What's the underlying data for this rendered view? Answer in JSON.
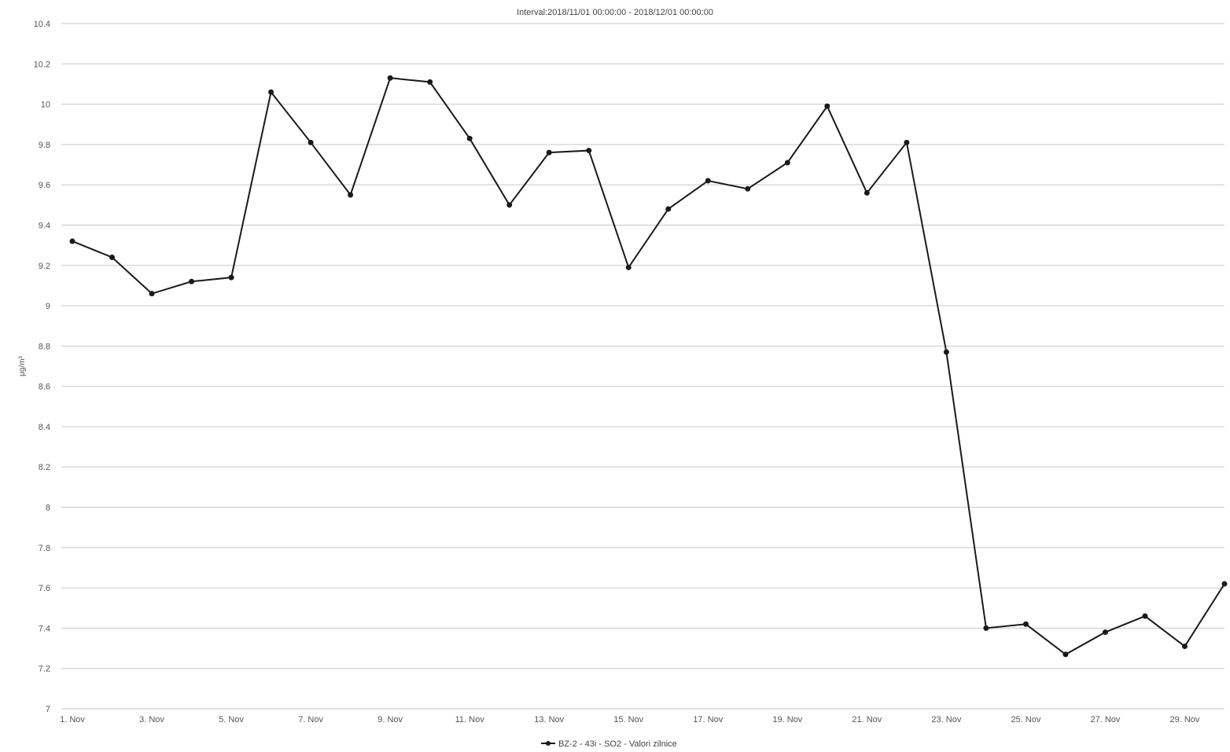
{
  "chart_data": {
    "type": "line",
    "title": "Interval:2018/11/01 00:00:00 - 2018/12/01 00:00:00",
    "xlabel": "",
    "ylabel": "µg/m³",
    "ylim": [
      7,
      10.4
    ],
    "yticks": [
      "7",
      "7.2",
      "7.4",
      "7.6",
      "7.8",
      "8",
      "8.2",
      "8.4",
      "8.6",
      "8.8",
      "9",
      "9.2",
      "9.4",
      "9.6",
      "9.8",
      "10",
      "10.2",
      "10.4"
    ],
    "xticks": [
      "1. Nov",
      "3. Nov",
      "5. Nov",
      "7. Nov",
      "9. Nov",
      "11. Nov",
      "13. Nov",
      "15. Nov",
      "17. Nov",
      "19. Nov",
      "21. Nov",
      "23. Nov",
      "25. Nov",
      "27. Nov",
      "29. Nov"
    ],
    "x": [
      "1. Nov",
      "2. Nov",
      "3. Nov",
      "4. Nov",
      "5. Nov",
      "6. Nov",
      "7. Nov",
      "8. Nov",
      "9. Nov",
      "10. Nov",
      "11. Nov",
      "12. Nov",
      "13. Nov",
      "14. Nov",
      "15. Nov",
      "16. Nov",
      "17. Nov",
      "18. Nov",
      "19. Nov",
      "20. Nov",
      "21. Nov",
      "22. Nov",
      "23. Nov",
      "24. Nov",
      "25. Nov",
      "26. Nov",
      "27. Nov",
      "28. Nov",
      "29. Nov",
      "30. Nov"
    ],
    "series": [
      {
        "name": "BZ-2 - 43i - SO2 - Valori zilnice",
        "color": "#1a1a1a",
        "values": [
          9.32,
          9.24,
          9.06,
          9.12,
          9.14,
          10.06,
          9.81,
          9.55,
          10.13,
          10.11,
          9.83,
          9.5,
          9.76,
          9.77,
          9.19,
          9.48,
          9.62,
          9.58,
          9.71,
          9.99,
          9.56,
          9.81,
          8.77,
          7.4,
          7.42,
          7.27,
          7.38,
          7.46,
          7.31,
          7.62
        ]
      }
    ],
    "grid": true,
    "legend_position": "bottom-center"
  }
}
